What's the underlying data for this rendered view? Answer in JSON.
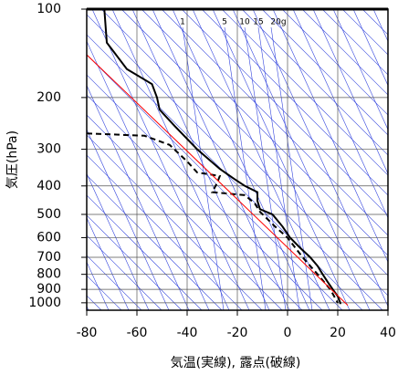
{
  "chart_data": {
    "type": "line",
    "xlabel": "気温(実線), 露点(破線)",
    "ylabel": "気圧(hPa)",
    "xlim": [
      -80,
      40
    ],
    "xticks": [
      -80,
      -60,
      -40,
      -20,
      0,
      20,
      40
    ],
    "ylim": [
      1060,
      100
    ],
    "yticks": [
      100,
      200,
      300,
      400,
      500,
      600,
      700,
      800,
      900,
      1000
    ],
    "log_y": true,
    "grid": true,
    "annotations": [
      "1",
      "5",
      "10",
      "15",
      "20g"
    ],
    "series": [
      {
        "color": "#000000",
        "dash": false,
        "y": [
          100,
          130,
          160,
          180,
          200,
          220,
          250,
          300,
          350,
          380,
          400,
          420,
          450,
          480,
          500,
          550,
          600,
          650,
          700,
          750,
          800,
          850,
          900,
          950,
          1000,
          1010
        ],
        "x": [
          -73,
          -72,
          -64,
          -54,
          -52,
          -51,
          -45,
          -36,
          -27,
          -21,
          -17,
          -12,
          -12,
          -11,
          -6,
          -2,
          1,
          5,
          9,
          12,
          14,
          16,
          18,
          20,
          21,
          21
        ]
      },
      {
        "color": "#000000",
        "dash": true,
        "y": [
          265,
          270,
          290,
          330,
          360,
          370,
          390,
          420,
          430,
          460,
          490,
          550,
          600,
          700,
          800,
          900,
          1000
        ],
        "x": [
          -80,
          -57,
          -47,
          -40,
          -36,
          -27,
          -28,
          -30,
          -17,
          -13,
          -11,
          -5,
          0,
          6,
          12,
          17,
          20
        ]
      },
      {
        "color": "#ff0000",
        "dash": false,
        "y": [
          143,
          1020
        ],
        "x": [
          -80,
          24
        ]
      }
    ]
  }
}
